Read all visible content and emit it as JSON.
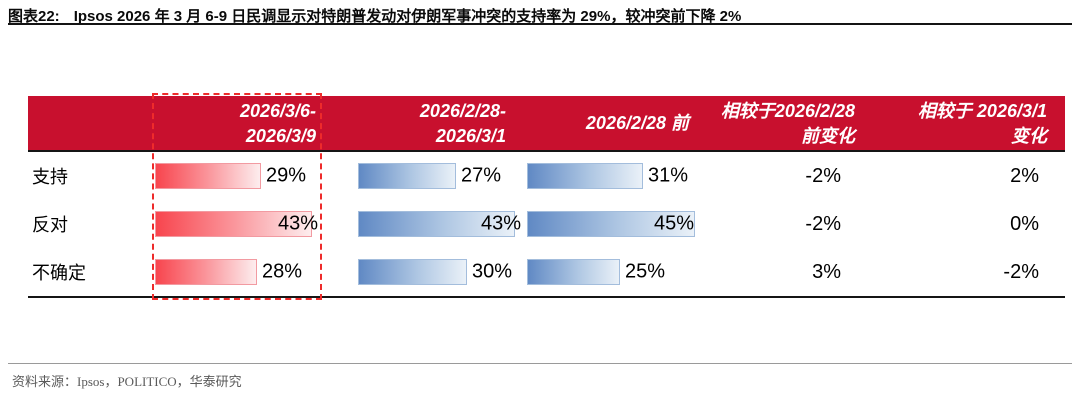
{
  "figure": {
    "label": "图表22:",
    "title": "Ipsos 2026 年 3 月 6-9 日民调显示对特朗普发动对伊朗军事冲突的支持率为 29%，较冲突前下降 2%"
  },
  "source": "资料来源：Ipsos，POLITICO，华泰研究",
  "colors": {
    "header_bg": "#C8102E",
    "highlight_dash": "#EE2B2B",
    "red_bar_start": "#F8454E",
    "red_bar_end": "#FDEDEE",
    "red_bar_border": "#F29AA1",
    "blue_bar_start": "#6089C4",
    "blue_bar_end": "#EAF1F8",
    "blue_bar_border": "#A3BDDC"
  },
  "table": {
    "column_headers": [
      {
        "line1": "2026/3/6-",
        "line2": "2026/3/9"
      },
      {
        "line1": "2026/2/28-",
        "line2": "2026/3/1"
      },
      {
        "single": "2026/2/28 前"
      },
      {
        "line1": "相较于2026/2/28",
        "line2": "前变化"
      },
      {
        "line1": "相较于 2026/3/1",
        "line2": "变化"
      }
    ]
  },
  "chart_data": {
    "type": "bar",
    "orientation": "horizontal",
    "title": "Ipsos 2026 年 3 月 6-9 日民调显示对特朗普发动对伊朗军事冲突的支持率为 29%，较冲突前下降 2%",
    "categories": [
      "支持",
      "反对",
      "不确定"
    ],
    "series": [
      {
        "name": "2026/3/6-2026/3/9",
        "render": "bar",
        "color_style": "red",
        "values": [
          29,
          43,
          28
        ],
        "labels": [
          "29%",
          "43%",
          "28%"
        ]
      },
      {
        "name": "2026/2/28-2026/3/1",
        "render": "bar",
        "color_style": "blue",
        "values": [
          27,
          43,
          30
        ],
        "labels": [
          "27%",
          "43%",
          "30%"
        ]
      },
      {
        "name": "2026/2/28 前",
        "render": "bar",
        "color_style": "blue",
        "values": [
          31,
          45,
          25
        ],
        "labels": [
          "31%",
          "45%",
          "25%"
        ]
      },
      {
        "name": "相较于2026/2/28 前变化",
        "render": "text",
        "values": [
          -2,
          -2,
          3
        ],
        "labels": [
          "-2%",
          "-2%",
          "3%"
        ]
      },
      {
        "name": "相较于 2026/3/1 变化",
        "render": "text",
        "values": [
          2,
          0,
          -2
        ],
        "labels": [
          "2%",
          "0%",
          "-2%"
        ]
      }
    ],
    "xlim": [
      0,
      45
    ],
    "unit": "%",
    "grid": false,
    "legend": false
  }
}
